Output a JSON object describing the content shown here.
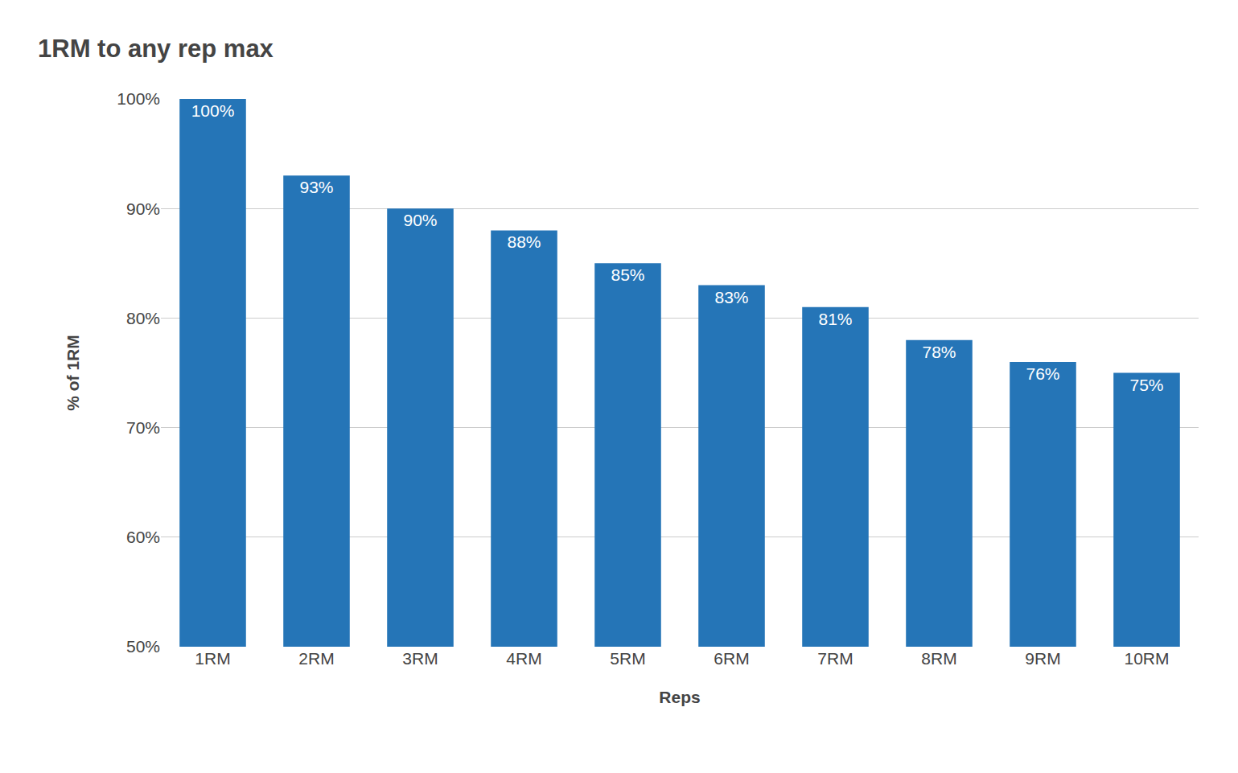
{
  "chart_data": {
    "type": "bar",
    "title": "1RM to any rep max",
    "x_label": "Reps",
    "y_label": "% of 1RM",
    "categories": [
      "1RM",
      "2RM",
      "3RM",
      "4RM",
      "5RM",
      "6RM",
      "7RM",
      "8RM",
      "9RM",
      "10RM"
    ],
    "values": [
      100,
      93,
      90,
      88,
      85,
      83,
      81,
      78,
      76,
      75
    ],
    "value_labels": [
      "100%",
      "93%",
      "90%",
      "88%",
      "85%",
      "83%",
      "81%",
      "78%",
      "76%",
      "75%"
    ],
    "color": "#2575b7",
    "ylim": [
      50,
      100
    ],
    "yticks": [
      {
        "value": 50,
        "label": "50%"
      },
      {
        "value": 60,
        "label": "60%"
      },
      {
        "value": 70,
        "label": "70%"
      },
      {
        "value": 80,
        "label": "80%"
      },
      {
        "value": 90,
        "label": "90%"
      },
      {
        "value": 100,
        "label": "100%"
      }
    ],
    "grid": true,
    "data_labels": true
  }
}
